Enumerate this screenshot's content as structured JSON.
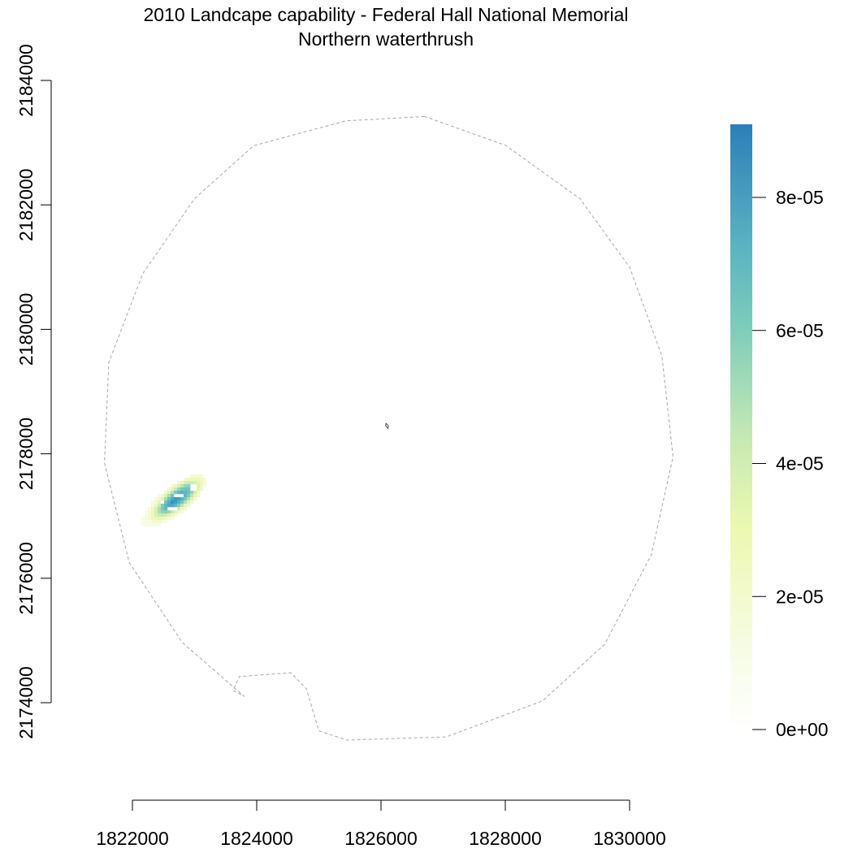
{
  "title": {
    "line1": "2010 Landcape capability - Federal Hall National Memorial",
    "line2": "Northern waterthrush"
  },
  "chart_data": {
    "type": "heatmap",
    "title": "2010 Landcape capability - Federal Hall National Memorial",
    "subtitle": "Northern waterthrush",
    "x_axis": {
      "range": [
        1822000,
        1830000
      ],
      "ticks": [
        1822000,
        1824000,
        1826000,
        1828000,
        1830000
      ],
      "tick_labels": [
        "1822000",
        "1824000",
        "1826000",
        "1828000",
        "1830000"
      ]
    },
    "y_axis": {
      "range": [
        2174000,
        2184000
      ],
      "ticks": [
        2174000,
        2176000,
        2178000,
        2180000,
        2182000,
        2184000
      ],
      "tick_labels": [
        "2174000",
        "2176000",
        "2178000",
        "2180000",
        "2182000",
        "2184000"
      ]
    },
    "legend": {
      "placement": "right",
      "min": 0,
      "max": 9.1e-05,
      "ticks": [
        0,
        2e-05,
        4e-05,
        6e-05,
        8e-05
      ],
      "tick_labels": [
        "0e+00",
        "2e-05",
        "4e-05",
        "6e-05",
        "8e-05"
      ],
      "colors": [
        "#FFFFFF",
        "#F3F9D9",
        "#EDF8B1",
        "#C7E9B4",
        "#7FCDBB",
        "#5FB5C0",
        "#41A3C4",
        "#2C7FB8"
      ]
    },
    "boundary_polygon": [
      [
        1826700,
        2183420
      ],
      [
        1825430,
        2183350
      ],
      [
        1823950,
        2182950
      ],
      [
        1823000,
        2182100
      ],
      [
        1822170,
        2180900
      ],
      [
        1821620,
        2179470
      ],
      [
        1821550,
        2177850
      ],
      [
        1821950,
        2176250
      ],
      [
        1822800,
        2174970
      ],
      [
        1823800,
        2174100
      ],
      [
        1823620,
        2174200
      ],
      [
        1823720,
        2174420
      ],
      [
        1824550,
        2174480
      ],
      [
        1824800,
        2174220
      ],
      [
        1825000,
        2173550
      ],
      [
        1825450,
        2173400
      ],
      [
        1827050,
        2173450
      ],
      [
        1828600,
        2174030
      ],
      [
        1829600,
        2174940
      ],
      [
        1830350,
        2176380
      ],
      [
        1830700,
        2177950
      ],
      [
        1830520,
        2179570
      ],
      [
        1830000,
        2181000
      ],
      [
        1829200,
        2182100
      ],
      [
        1828000,
        2182960
      ]
    ],
    "site_marker": {
      "x": 1826100,
      "y": 2178450
    },
    "habitat_patch": {
      "description_units": "map units",
      "x_range": [
        1822200,
        1823100
      ],
      "y_range": [
        2176800,
        2177800
      ],
      "peak_value": 8.8e-05,
      "peak_location": [
        1822900,
        2177450
      ]
    }
  }
}
